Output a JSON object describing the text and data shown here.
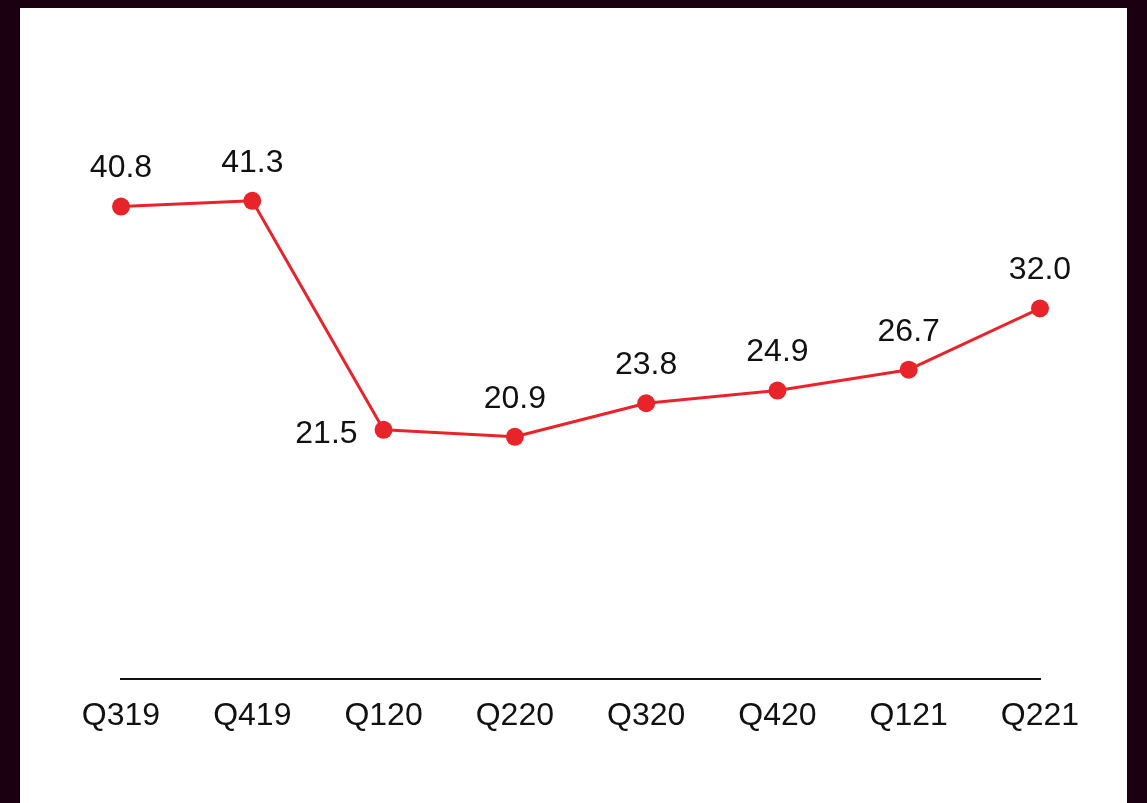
{
  "chart_data": {
    "type": "line",
    "categories": [
      "Q319",
      "Q419",
      "Q120",
      "Q220",
      "Q320",
      "Q420",
      "Q121",
      "Q221"
    ],
    "values": [
      40.8,
      41.3,
      21.5,
      20.9,
      23.8,
      24.9,
      26.7,
      32.0
    ],
    "value_labels": [
      "40.8",
      "41.3",
      "21.5",
      "20.9",
      "23.8",
      "24.9",
      "26.7",
      "32.0"
    ],
    "color": "#e8242b",
    "tick_labels": "x",
    "marker": "circle",
    "line_style": "solid",
    "grid": false,
    "legend": false
  }
}
